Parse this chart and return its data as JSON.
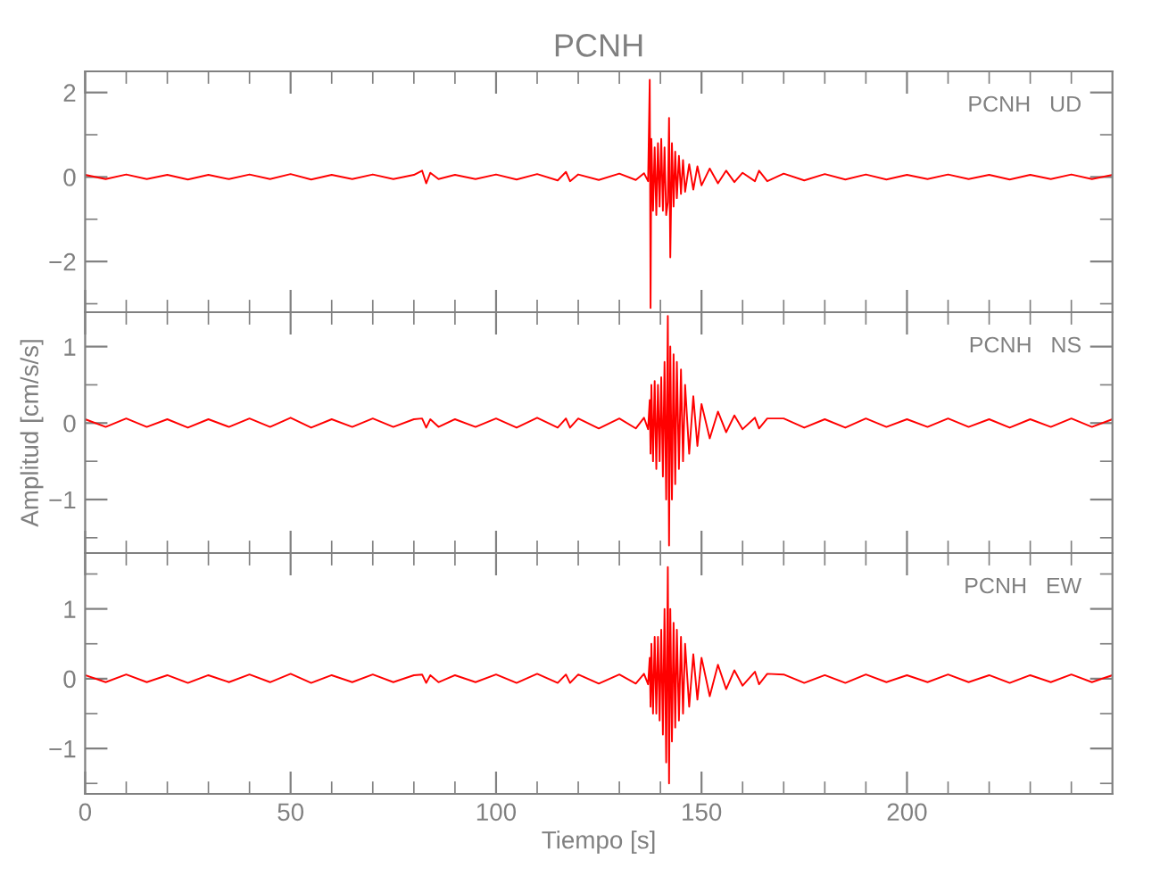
{
  "chart_data": [
    {
      "type": "line",
      "title": "PCNH",
      "tick_labels": "y",
      "annotations": [
        "PCNH   UD"
      ],
      "x": [
        0,
        5,
        10,
        15,
        20,
        25,
        30,
        35,
        40,
        45,
        50,
        55,
        60,
        65,
        70,
        75,
        80,
        82,
        83,
        84,
        86,
        90,
        95,
        100,
        105,
        110,
        115,
        117,
        118,
        120,
        125,
        130,
        134,
        136,
        137,
        137.4,
        137.6,
        137.8,
        138.2,
        138.6,
        139,
        139.4,
        139.8,
        140.2,
        140.6,
        141,
        141.4,
        141.8,
        142.1,
        142.4,
        142.8,
        143.2,
        143.6,
        144,
        144.5,
        145,
        145.5,
        146,
        147,
        148,
        149,
        150,
        152,
        154,
        156,
        158,
        160,
        163,
        164,
        166,
        170,
        175,
        180,
        185,
        190,
        195,
        200,
        205,
        210,
        215,
        220,
        225,
        230,
        235,
        240,
        245,
        250
      ],
      "series": [
        {
          "color": "#ff0000",
          "values": [
            0.05,
            -0.05,
            0.06,
            -0.05,
            0.05,
            -0.06,
            0.05,
            -0.05,
            0.06,
            -0.05,
            0.07,
            -0.06,
            0.05,
            -0.05,
            0.06,
            -0.05,
            0.05,
            0.15,
            -0.15,
            0.1,
            -0.05,
            0.05,
            -0.05,
            0.06,
            -0.06,
            0.07,
            -0.08,
            0.12,
            -0.1,
            0.06,
            -0.07,
            0.08,
            -0.07,
            0.09,
            -0.1,
            2.3,
            -3.1,
            0.9,
            -0.8,
            0.7,
            -0.9,
            0.8,
            -0.7,
            0.9,
            -0.8,
            0.7,
            -0.9,
            -0.6,
            1.4,
            -1.9,
            0.8,
            -0.7,
            0.6,
            -0.5,
            0.5,
            -0.4,
            0.4,
            -0.35,
            0.3,
            -0.3,
            0.25,
            -0.2,
            0.2,
            -0.15,
            0.15,
            -0.12,
            0.1,
            -0.1,
            0.15,
            -0.1,
            0.08,
            -0.08,
            0.07,
            -0.06,
            0.06,
            -0.06,
            0.05,
            -0.05,
            0.06,
            -0.05,
            0.05,
            -0.06,
            0.05,
            -0.05,
            0.06,
            -0.05,
            0.05
          ]
        }
      ],
      "xlim": [
        0,
        250
      ],
      "ylim": [
        -3.2,
        2.5
      ],
      "xticks": [
        0,
        {
          "value": 10,
          "label": null
        },
        {
          "value": 20,
          "label": null
        },
        {
          "value": 30,
          "label": null
        },
        {
          "value": 40,
          "label": null
        },
        50,
        {
          "value": 60,
          "label": null
        },
        {
          "value": 70,
          "label": null
        },
        {
          "value": 80,
          "label": null
        },
        {
          "value": 90,
          "label": null
        },
        100,
        {
          "value": 110,
          "label": null
        },
        {
          "value": 120,
          "label": null
        },
        {
          "value": 130,
          "label": null
        },
        {
          "value": 140,
          "label": null
        },
        150,
        {
          "value": 160,
          "label": null
        },
        {
          "value": 170,
          "label": null
        },
        {
          "value": 180,
          "label": null
        },
        {
          "value": 190,
          "label": null
        },
        200,
        {
          "value": 210,
          "label": null
        },
        {
          "value": 220,
          "label": null
        },
        {
          "value": 230,
          "label": null
        },
        {
          "value": 240,
          "label": null
        }
      ],
      "yticks": [
        {
          "value": -3,
          "label": null
        },
        {
          "value": -2,
          "label": "−2"
        },
        {
          "value": -1,
          "label": null
        },
        0,
        {
          "value": 1,
          "label": null
        },
        2
      ]
    },
    {
      "type": "line",
      "ylabel": "Amplitud [cm/s/s]",
      "tick_labels": "y",
      "annotations": [
        "PCNH   NS"
      ],
      "x": [
        0,
        5,
        10,
        15,
        20,
        25,
        30,
        35,
        40,
        45,
        50,
        55,
        60,
        65,
        70,
        75,
        80,
        82,
        83,
        84,
        86,
        90,
        95,
        100,
        105,
        110,
        115,
        117,
        118,
        120,
        125,
        130,
        134,
        136,
        137,
        137.4,
        137.6,
        137.8,
        138.2,
        138.6,
        139,
        139.4,
        139.8,
        140.2,
        140.6,
        141,
        141.4,
        141.8,
        142.1,
        142.4,
        142.8,
        143.2,
        143.6,
        144,
        144.5,
        145,
        145.5,
        146,
        147,
        148,
        149,
        150,
        152,
        154,
        156,
        158,
        160,
        163,
        164,
        166,
        170,
        175,
        180,
        185,
        190,
        195,
        200,
        205,
        210,
        215,
        220,
        225,
        230,
        235,
        240,
        245,
        250
      ],
      "series": [
        {
          "color": "#ff0000",
          "values": [
            0.05,
            -0.05,
            0.06,
            -0.05,
            0.05,
            -0.06,
            0.05,
            -0.05,
            0.06,
            -0.05,
            0.07,
            -0.06,
            0.05,
            -0.05,
            0.06,
            -0.05,
            0.05,
            0.06,
            -0.06,
            0.05,
            -0.05,
            0.05,
            -0.05,
            0.06,
            -0.06,
            0.07,
            -0.06,
            0.06,
            -0.06,
            0.06,
            -0.07,
            0.06,
            -0.07,
            0.07,
            -0.08,
            0.3,
            -0.4,
            0.5,
            -0.5,
            0.55,
            -0.6,
            0.5,
            -0.5,
            0.6,
            -0.7,
            0.8,
            -1.0,
            1.4,
            -1.6,
            1.0,
            -1.0,
            0.9,
            -0.8,
            0.8,
            -0.6,
            0.7,
            -0.5,
            0.5,
            -0.4,
            0.35,
            -0.3,
            0.25,
            -0.2,
            0.15,
            -0.12,
            0.1,
            -0.08,
            0.07,
            -0.07,
            0.06,
            0.06,
            -0.06,
            0.05,
            -0.06,
            0.06,
            -0.05,
            0.05,
            -0.05,
            0.06,
            -0.05,
            0.05,
            -0.06,
            0.05,
            -0.05,
            0.06,
            -0.05,
            0.05
          ]
        }
      ],
      "xlim": [
        0,
        250
      ],
      "ylim": [
        -1.7,
        1.45
      ],
      "xticks": [
        0,
        {
          "value": 10,
          "label": null
        },
        {
          "value": 20,
          "label": null
        },
        {
          "value": 30,
          "label": null
        },
        {
          "value": 40,
          "label": null
        },
        50,
        {
          "value": 60,
          "label": null
        },
        {
          "value": 70,
          "label": null
        },
        {
          "value": 80,
          "label": null
        },
        {
          "value": 90,
          "label": null
        },
        100,
        {
          "value": 110,
          "label": null
        },
        {
          "value": 120,
          "label": null
        },
        {
          "value": 130,
          "label": null
        },
        {
          "value": 140,
          "label": null
        },
        150,
        {
          "value": 160,
          "label": null
        },
        {
          "value": 170,
          "label": null
        },
        {
          "value": 180,
          "label": null
        },
        {
          "value": 190,
          "label": null
        },
        200,
        {
          "value": 210,
          "label": null
        },
        {
          "value": 220,
          "label": null
        },
        {
          "value": 230,
          "label": null
        },
        {
          "value": 240,
          "label": null
        }
      ],
      "yticks": [
        {
          "value": -1.5,
          "label": null
        },
        {
          "value": -1,
          "label": "−1"
        },
        {
          "value": -0.5,
          "label": null
        },
        0,
        {
          "value": 0.5,
          "label": null
        },
        1
      ]
    },
    {
      "type": "line",
      "xlabel": "Tiempo [s]",
      "annotations": [
        "PCNH   EW"
      ],
      "x": [
        0,
        5,
        10,
        15,
        20,
        25,
        30,
        35,
        40,
        45,
        50,
        55,
        60,
        65,
        70,
        75,
        80,
        82,
        83,
        84,
        86,
        90,
        95,
        100,
        105,
        110,
        115,
        117,
        118,
        120,
        125,
        130,
        134,
        136,
        137,
        137.4,
        137.6,
        137.8,
        138.2,
        138.6,
        139,
        139.4,
        139.8,
        140.2,
        140.6,
        141,
        141.4,
        141.8,
        142.1,
        142.4,
        142.8,
        143.2,
        143.6,
        144,
        144.5,
        145,
        145.5,
        146,
        147,
        148,
        149,
        150,
        152,
        154,
        156,
        158,
        160,
        163,
        164,
        166,
        170,
        175,
        180,
        185,
        190,
        195,
        200,
        205,
        210,
        215,
        220,
        225,
        230,
        235,
        240,
        245,
        250
      ],
      "series": [
        {
          "color": "#ff0000",
          "values": [
            0.05,
            -0.05,
            0.06,
            -0.05,
            0.05,
            -0.06,
            0.05,
            -0.05,
            0.06,
            -0.05,
            0.07,
            -0.06,
            0.05,
            -0.05,
            0.06,
            -0.05,
            0.05,
            0.06,
            -0.06,
            0.05,
            -0.05,
            0.05,
            -0.05,
            0.06,
            -0.06,
            0.07,
            -0.06,
            0.06,
            -0.06,
            0.06,
            -0.07,
            0.06,
            -0.07,
            0.07,
            -0.08,
            0.3,
            -0.4,
            0.5,
            -0.5,
            0.6,
            -0.5,
            0.6,
            -0.6,
            0.7,
            -0.8,
            1.0,
            -1.2,
            1.6,
            -1.5,
            1.0,
            -0.9,
            0.8,
            -0.7,
            0.7,
            -0.6,
            0.6,
            -0.5,
            0.5,
            -0.4,
            0.35,
            -0.3,
            0.3,
            -0.25,
            0.2,
            -0.15,
            0.12,
            -0.1,
            0.1,
            -0.08,
            0.07,
            0.06,
            -0.06,
            0.05,
            -0.06,
            0.06,
            -0.05,
            0.05,
            -0.05,
            0.06,
            -0.05,
            0.05,
            -0.06,
            0.05,
            -0.05,
            0.06,
            -0.05,
            0.05
          ]
        }
      ],
      "xlim": [
        0,
        250
      ],
      "ylim": [
        -1.65,
        1.8
      ],
      "xticks": [
        0,
        {
          "value": 10,
          "label": null
        },
        {
          "value": 20,
          "label": null
        },
        {
          "value": 30,
          "label": null
        },
        {
          "value": 40,
          "label": null
        },
        50,
        {
          "value": 60,
          "label": null
        },
        {
          "value": 70,
          "label": null
        },
        {
          "value": 80,
          "label": null
        },
        {
          "value": 90,
          "label": null
        },
        100,
        {
          "value": 110,
          "label": null
        },
        {
          "value": 120,
          "label": null
        },
        {
          "value": 130,
          "label": null
        },
        {
          "value": 140,
          "label": null
        },
        150,
        {
          "value": 160,
          "label": null
        },
        {
          "value": 170,
          "label": null
        },
        {
          "value": 180,
          "label": null
        },
        {
          "value": 190,
          "label": null
        },
        200,
        {
          "value": 210,
          "label": null
        },
        {
          "value": 220,
          "label": null
        },
        {
          "value": 230,
          "label": null
        },
        {
          "value": 240,
          "label": null
        }
      ],
      "yticks": [
        {
          "value": -1.5,
          "label": null
        },
        {
          "value": -1,
          "label": "−1"
        },
        {
          "value": -0.5,
          "label": null
        },
        0,
        {
          "value": 0.5,
          "label": null
        },
        1,
        {
          "value": 1.5,
          "label": null
        }
      ]
    }
  ]
}
